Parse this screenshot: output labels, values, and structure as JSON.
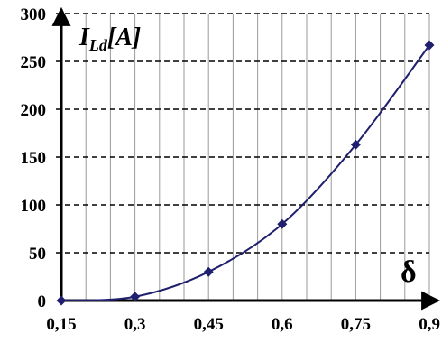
{
  "chart_data": {
    "type": "line",
    "title": "",
    "ylabel": {
      "main": "I",
      "sub": "Ld",
      "unit": "[A]"
    },
    "xlabel": "δ",
    "x": [
      0.15,
      0.3,
      0.45,
      0.6,
      0.75,
      0.9
    ],
    "x_tick_labels": [
      "0,15",
      "0,3",
      "0,45",
      "0,6",
      "0,75",
      "0,9"
    ],
    "y_ticks": [
      0,
      50,
      100,
      150,
      200,
      250,
      300
    ],
    "y_tick_labels": [
      "0",
      "50",
      "100",
      "150",
      "200",
      "250",
      "300"
    ],
    "series": [
      {
        "values": [
          0,
          4,
          30,
          80,
          163,
          267
        ]
      }
    ],
    "xlim": [
      0.15,
      0.9
    ],
    "ylim": [
      0,
      300
    ],
    "grid": {
      "vertical_minor": true,
      "horizontal_dashed": true
    },
    "legend": "none",
    "colors": {
      "series": "#1f1f6e",
      "grid_vertical": "#9a9a9a",
      "grid_horizontal": "#000000",
      "axis": "#000000"
    }
  }
}
